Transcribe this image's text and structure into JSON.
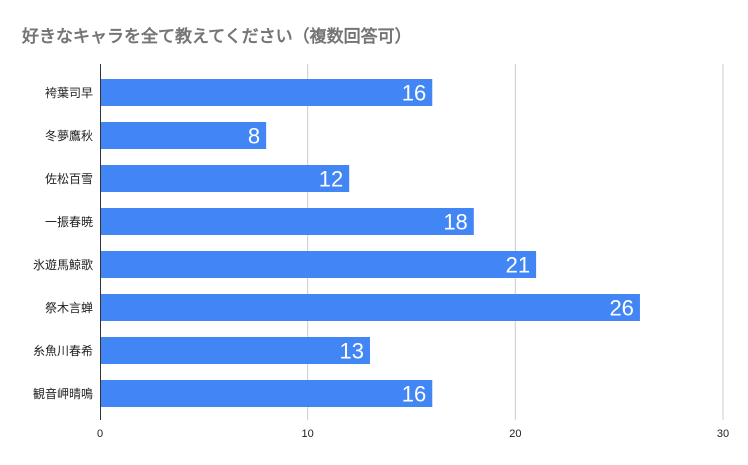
{
  "chart_data": {
    "type": "bar",
    "orientation": "horizontal",
    "title": "好きなキャラを全て教えてください（複数回答可）",
    "categories": [
      "袴葉司早",
      "冬夢鷹秋",
      "佐松百雪",
      "一振春暁",
      "氷遊馬鯨歌",
      "祭木言蝉",
      "糸魚川春希",
      "観音岬晴鳴"
    ],
    "values": [
      16,
      8,
      12,
      18,
      21,
      26,
      13,
      16
    ],
    "xlim": [
      0,
      30
    ],
    "xticks": [
      "0",
      "10",
      "20",
      "30"
    ],
    "xlabel": "",
    "ylabel": "",
    "grid": true,
    "legend": "none",
    "bar_color": "#4285f4",
    "grid_color": "#cccccc",
    "data_labels": true
  }
}
